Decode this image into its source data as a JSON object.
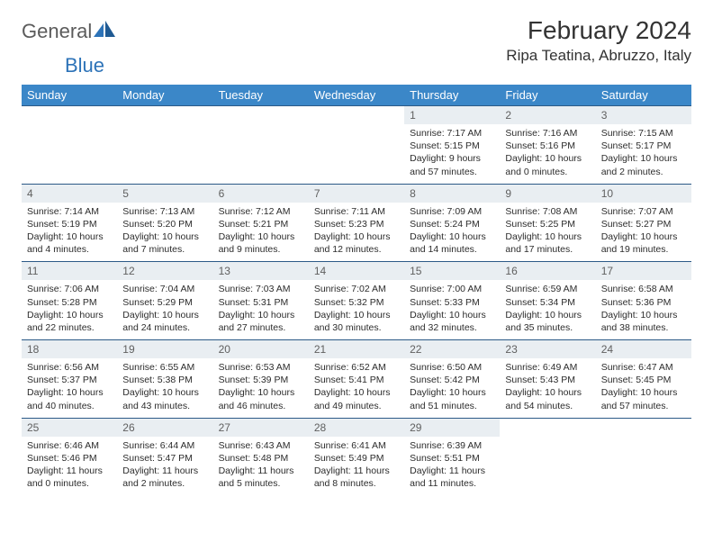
{
  "brand": {
    "part1": "General",
    "part2": "Blue"
  },
  "title": "February 2024",
  "location": "Ripa Teatina, Abruzzo, Italy",
  "colors": {
    "header_bg": "#3b87c8",
    "header_text": "#ffffff",
    "daynum_bg": "#e9eef2",
    "daynum_text": "#606060",
    "border": "#2c5a87",
    "brand_grey": "#5b5b5b",
    "brand_blue": "#2d73b8"
  },
  "weekdays": [
    "Sunday",
    "Monday",
    "Tuesday",
    "Wednesday",
    "Thursday",
    "Friday",
    "Saturday"
  ],
  "weeks": [
    [
      null,
      null,
      null,
      null,
      {
        "n": "1",
        "sr": "Sunrise: 7:17 AM",
        "ss": "Sunset: 5:15 PM",
        "d1": "Daylight: 9 hours",
        "d2": "and 57 minutes."
      },
      {
        "n": "2",
        "sr": "Sunrise: 7:16 AM",
        "ss": "Sunset: 5:16 PM",
        "d1": "Daylight: 10 hours",
        "d2": "and 0 minutes."
      },
      {
        "n": "3",
        "sr": "Sunrise: 7:15 AM",
        "ss": "Sunset: 5:17 PM",
        "d1": "Daylight: 10 hours",
        "d2": "and 2 minutes."
      }
    ],
    [
      {
        "n": "4",
        "sr": "Sunrise: 7:14 AM",
        "ss": "Sunset: 5:19 PM",
        "d1": "Daylight: 10 hours",
        "d2": "and 4 minutes."
      },
      {
        "n": "5",
        "sr": "Sunrise: 7:13 AM",
        "ss": "Sunset: 5:20 PM",
        "d1": "Daylight: 10 hours",
        "d2": "and 7 minutes."
      },
      {
        "n": "6",
        "sr": "Sunrise: 7:12 AM",
        "ss": "Sunset: 5:21 PM",
        "d1": "Daylight: 10 hours",
        "d2": "and 9 minutes."
      },
      {
        "n": "7",
        "sr": "Sunrise: 7:11 AM",
        "ss": "Sunset: 5:23 PM",
        "d1": "Daylight: 10 hours",
        "d2": "and 12 minutes."
      },
      {
        "n": "8",
        "sr": "Sunrise: 7:09 AM",
        "ss": "Sunset: 5:24 PM",
        "d1": "Daylight: 10 hours",
        "d2": "and 14 minutes."
      },
      {
        "n": "9",
        "sr": "Sunrise: 7:08 AM",
        "ss": "Sunset: 5:25 PM",
        "d1": "Daylight: 10 hours",
        "d2": "and 17 minutes."
      },
      {
        "n": "10",
        "sr": "Sunrise: 7:07 AM",
        "ss": "Sunset: 5:27 PM",
        "d1": "Daylight: 10 hours",
        "d2": "and 19 minutes."
      }
    ],
    [
      {
        "n": "11",
        "sr": "Sunrise: 7:06 AM",
        "ss": "Sunset: 5:28 PM",
        "d1": "Daylight: 10 hours",
        "d2": "and 22 minutes."
      },
      {
        "n": "12",
        "sr": "Sunrise: 7:04 AM",
        "ss": "Sunset: 5:29 PM",
        "d1": "Daylight: 10 hours",
        "d2": "and 24 minutes."
      },
      {
        "n": "13",
        "sr": "Sunrise: 7:03 AM",
        "ss": "Sunset: 5:31 PM",
        "d1": "Daylight: 10 hours",
        "d2": "and 27 minutes."
      },
      {
        "n": "14",
        "sr": "Sunrise: 7:02 AM",
        "ss": "Sunset: 5:32 PM",
        "d1": "Daylight: 10 hours",
        "d2": "and 30 minutes."
      },
      {
        "n": "15",
        "sr": "Sunrise: 7:00 AM",
        "ss": "Sunset: 5:33 PM",
        "d1": "Daylight: 10 hours",
        "d2": "and 32 minutes."
      },
      {
        "n": "16",
        "sr": "Sunrise: 6:59 AM",
        "ss": "Sunset: 5:34 PM",
        "d1": "Daylight: 10 hours",
        "d2": "and 35 minutes."
      },
      {
        "n": "17",
        "sr": "Sunrise: 6:58 AM",
        "ss": "Sunset: 5:36 PM",
        "d1": "Daylight: 10 hours",
        "d2": "and 38 minutes."
      }
    ],
    [
      {
        "n": "18",
        "sr": "Sunrise: 6:56 AM",
        "ss": "Sunset: 5:37 PM",
        "d1": "Daylight: 10 hours",
        "d2": "and 40 minutes."
      },
      {
        "n": "19",
        "sr": "Sunrise: 6:55 AM",
        "ss": "Sunset: 5:38 PM",
        "d1": "Daylight: 10 hours",
        "d2": "and 43 minutes."
      },
      {
        "n": "20",
        "sr": "Sunrise: 6:53 AM",
        "ss": "Sunset: 5:39 PM",
        "d1": "Daylight: 10 hours",
        "d2": "and 46 minutes."
      },
      {
        "n": "21",
        "sr": "Sunrise: 6:52 AM",
        "ss": "Sunset: 5:41 PM",
        "d1": "Daylight: 10 hours",
        "d2": "and 49 minutes."
      },
      {
        "n": "22",
        "sr": "Sunrise: 6:50 AM",
        "ss": "Sunset: 5:42 PM",
        "d1": "Daylight: 10 hours",
        "d2": "and 51 minutes."
      },
      {
        "n": "23",
        "sr": "Sunrise: 6:49 AM",
        "ss": "Sunset: 5:43 PM",
        "d1": "Daylight: 10 hours",
        "d2": "and 54 minutes."
      },
      {
        "n": "24",
        "sr": "Sunrise: 6:47 AM",
        "ss": "Sunset: 5:45 PM",
        "d1": "Daylight: 10 hours",
        "d2": "and 57 minutes."
      }
    ],
    [
      {
        "n": "25",
        "sr": "Sunrise: 6:46 AM",
        "ss": "Sunset: 5:46 PM",
        "d1": "Daylight: 11 hours",
        "d2": "and 0 minutes."
      },
      {
        "n": "26",
        "sr": "Sunrise: 6:44 AM",
        "ss": "Sunset: 5:47 PM",
        "d1": "Daylight: 11 hours",
        "d2": "and 2 minutes."
      },
      {
        "n": "27",
        "sr": "Sunrise: 6:43 AM",
        "ss": "Sunset: 5:48 PM",
        "d1": "Daylight: 11 hours",
        "d2": "and 5 minutes."
      },
      {
        "n": "28",
        "sr": "Sunrise: 6:41 AM",
        "ss": "Sunset: 5:49 PM",
        "d1": "Daylight: 11 hours",
        "d2": "and 8 minutes."
      },
      {
        "n": "29",
        "sr": "Sunrise: 6:39 AM",
        "ss": "Sunset: 5:51 PM",
        "d1": "Daylight: 11 hours",
        "d2": "and 11 minutes."
      },
      null,
      null
    ]
  ]
}
